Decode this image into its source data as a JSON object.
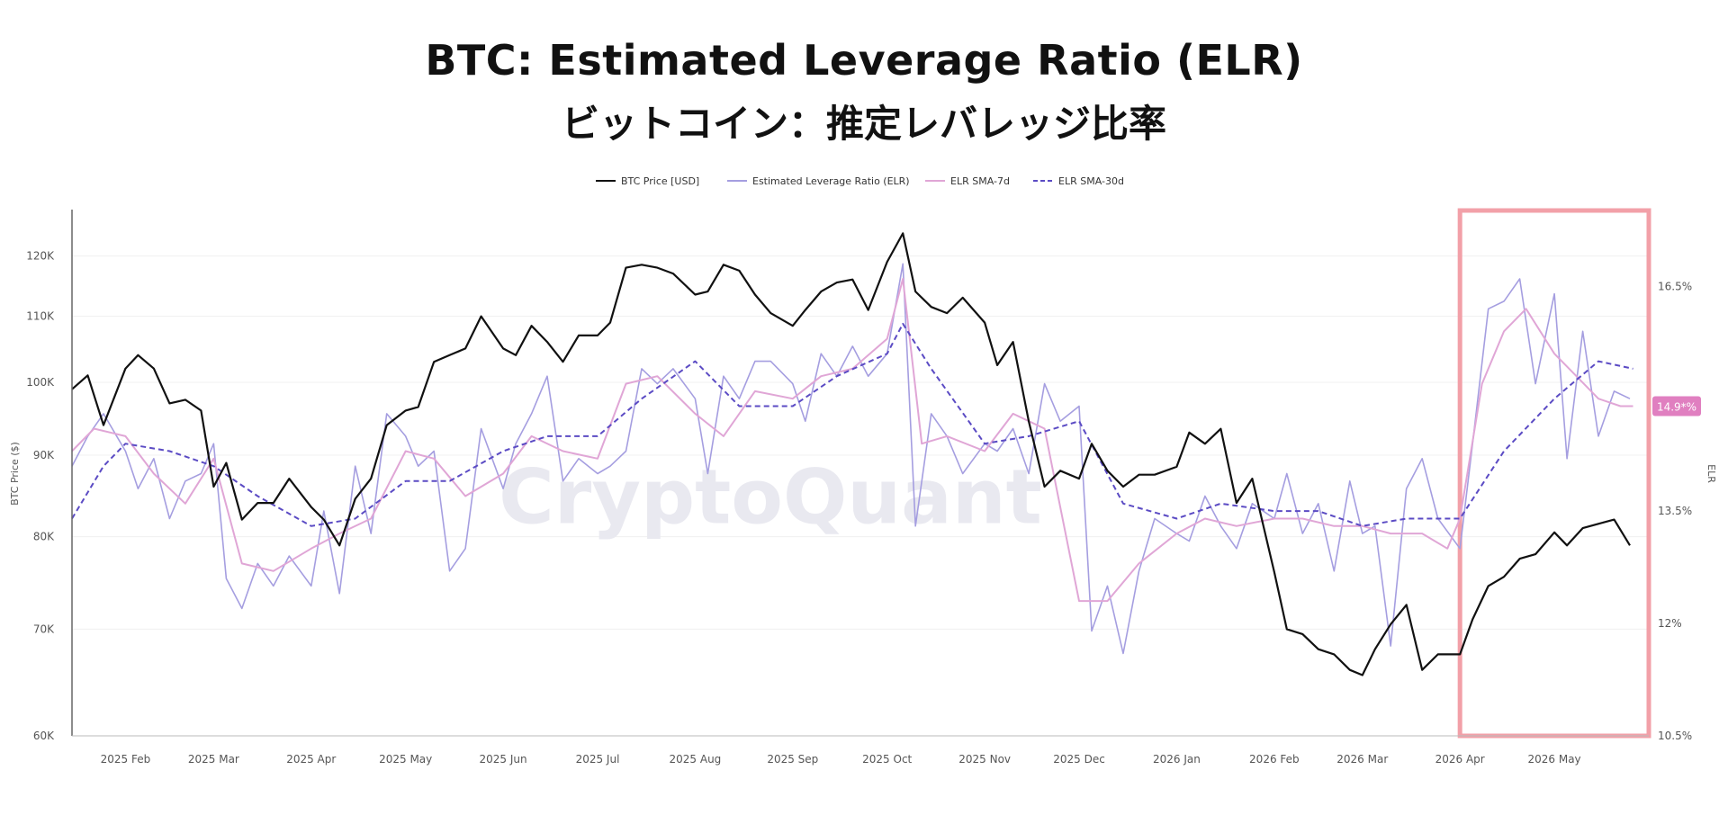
{
  "chart_data": {
    "type": "line",
    "title": "BTC: Estimated Leverage Ratio (ELR)",
    "subtitle": "ビットコイン：推定レバレッジ比率",
    "watermark": "CryptoQuant",
    "legend": {
      "placement": "top-center",
      "entries": [
        "BTC Price [USD]",
        "Estimated Leverage Ratio (ELR)",
        "ELR SMA-7d",
        "ELR SMA-30d"
      ]
    },
    "y_left": {
      "label": "BTC Price ($)",
      "scale": "log",
      "range": [
        60000,
        128000
      ],
      "ticks": [
        60000,
        70000,
        80000,
        90000,
        100000,
        110000,
        120000
      ],
      "tick_labels": [
        "60K",
        "70K",
        "80K",
        "90K",
        "100K",
        "110K",
        "120K"
      ]
    },
    "y_right": {
      "label": "ELR",
      "range": [
        10.5,
        17.5
      ],
      "ticks": [
        10.5,
        12,
        13.5,
        15,
        16.5
      ],
      "tick_labels": [
        "10.5%",
        "12%",
        "13.5%",
        "",
        "16.5%"
      ],
      "current_value_label": "14.9*%",
      "current_value": 14.9
    },
    "x_axis": {
      "range": [
        "2025-01-15",
        "2026-05-31"
      ],
      "ticks": [
        "2025-02-01",
        "2025-03-01",
        "2025-04-01",
        "2025-05-01",
        "2025-06-01",
        "2025-07-01",
        "2025-08-01",
        "2025-09-01",
        "2025-10-01",
        "2025-11-01",
        "2025-12-01",
        "2026-01-01",
        "2026-02-01",
        "2026-03-01",
        "2026-04-01",
        "2026-05-01"
      ],
      "tick_labels": [
        "2025 Feb",
        "2025 Mar",
        "2025 Apr",
        "2025 May",
        "2025 Jun",
        "2025 Jul",
        "2025 Aug",
        "2025 Sep",
        "2025 Oct",
        "2025 Nov",
        "2025 Dec",
        "2026 Jan",
        "2026 Feb",
        "2026 Mar",
        "2026 Apr",
        "2026 May"
      ]
    },
    "highlight_range": {
      "from": "2026-04-01",
      "to": "2026-05-31",
      "color": "#f2a0a8"
    },
    "series": [
      {
        "name": "BTC Price [USD]",
        "axis": "left",
        "color": "#111111",
        "dash": false,
        "x": [
          "2025-01-15",
          "2025-01-20",
          "2025-01-25",
          "2025-02-01",
          "2025-02-05",
          "2025-02-10",
          "2025-02-15",
          "2025-02-20",
          "2025-02-25",
          "2025-03-01",
          "2025-03-05",
          "2025-03-10",
          "2025-03-15",
          "2025-03-20",
          "2025-03-25",
          "2025-04-01",
          "2025-04-05",
          "2025-04-10",
          "2025-04-15",
          "2025-04-20",
          "2025-04-25",
          "2025-05-01",
          "2025-05-05",
          "2025-05-10",
          "2025-05-15",
          "2025-05-20",
          "2025-05-25",
          "2025-06-01",
          "2025-06-05",
          "2025-06-10",
          "2025-06-15",
          "2025-06-20",
          "2025-06-25",
          "2025-07-01",
          "2025-07-05",
          "2025-07-10",
          "2025-07-15",
          "2025-07-20",
          "2025-07-25",
          "2025-08-01",
          "2025-08-05",
          "2025-08-10",
          "2025-08-15",
          "2025-08-20",
          "2025-08-25",
          "2025-09-01",
          "2025-09-05",
          "2025-09-10",
          "2025-09-15",
          "2025-09-20",
          "2025-09-25",
          "2025-10-01",
          "2025-10-06",
          "2025-10-10",
          "2025-10-15",
          "2025-10-20",
          "2025-10-25",
          "2025-11-01",
          "2025-11-05",
          "2025-11-10",
          "2025-11-15",
          "2025-11-20",
          "2025-11-25",
          "2025-12-01",
          "2025-12-05",
          "2025-12-10",
          "2025-12-15",
          "2025-12-20",
          "2025-12-25",
          "2026-01-01",
          "2026-01-05",
          "2026-01-10",
          "2026-01-15",
          "2026-01-20",
          "2026-01-25",
          "2026-02-01",
          "2026-02-05",
          "2026-02-10",
          "2026-02-15",
          "2026-02-20",
          "2026-02-25",
          "2026-03-01",
          "2026-03-05",
          "2026-03-10",
          "2026-03-15",
          "2026-03-20",
          "2026-03-25",
          "2026-04-01",
          "2026-04-05",
          "2026-04-10",
          "2026-04-15",
          "2026-04-20",
          "2026-04-25",
          "2026-05-01",
          "2026-05-05",
          "2026-05-10",
          "2026-05-15",
          "2026-05-20",
          "2026-05-25"
        ],
        "values": [
          99000,
          101000,
          94000,
          102000,
          104000,
          102000,
          97000,
          97500,
          96000,
          86000,
          89000,
          82000,
          84000,
          84000,
          87000,
          83500,
          82000,
          79000,
          84500,
          87000,
          94000,
          96000,
          96500,
          103000,
          104000,
          105000,
          110000,
          105000,
          104000,
          108500,
          106000,
          103000,
          107000,
          107000,
          109000,
          118000,
          118500,
          118000,
          117000,
          113500,
          114000,
          118500,
          117500,
          113500,
          110500,
          108500,
          111000,
          114000,
          115500,
          116000,
          111000,
          119000,
          124000,
          114000,
          111500,
          110500,
          113000,
          109000,
          102500,
          106000,
          94500,
          86000,
          88000,
          87000,
          91500,
          88000,
          86000,
          87500,
          87500,
          88500,
          93000,
          91500,
          93500,
          84000,
          87000,
          76000,
          70000,
          69500,
          68000,
          67500,
          66000,
          65500,
          68000,
          70500,
          72500,
          66000,
          67500,
          67500,
          71000,
          74500,
          75500,
          77500,
          78000,
          80500,
          79000,
          81000,
          81500,
          82000,
          79000
        ],
        "note": "approximate values read from chart"
      },
      {
        "name": "Estimated Leverage Ratio (ELR)",
        "axis": "right",
        "color": "#a59ee0",
        "dash": false,
        "x": [
          "2025-01-15",
          "2025-01-20",
          "2025-01-25",
          "2025-02-01",
          "2025-02-05",
          "2025-02-10",
          "2025-02-15",
          "2025-02-20",
          "2025-02-25",
          "2025-03-01",
          "2025-03-05",
          "2025-03-10",
          "2025-03-15",
          "2025-03-20",
          "2025-03-25",
          "2025-04-01",
          "2025-04-05",
          "2025-04-10",
          "2025-04-15",
          "2025-04-20",
          "2025-04-25",
          "2025-05-01",
          "2025-05-05",
          "2025-05-10",
          "2025-05-15",
          "2025-05-20",
          "2025-05-25",
          "2025-06-01",
          "2025-06-05",
          "2025-06-10",
          "2025-06-15",
          "2025-06-20",
          "2025-06-25",
          "2025-07-01",
          "2025-07-05",
          "2025-07-10",
          "2025-07-15",
          "2025-07-20",
          "2025-07-25",
          "2025-08-01",
          "2025-08-05",
          "2025-08-10",
          "2025-08-15",
          "2025-08-20",
          "2025-08-25",
          "2025-09-01",
          "2025-09-05",
          "2025-09-10",
          "2025-09-15",
          "2025-09-20",
          "2025-09-25",
          "2025-10-01",
          "2025-10-06",
          "2025-10-10",
          "2025-10-15",
          "2025-10-20",
          "2025-10-25",
          "2025-11-01",
          "2025-11-05",
          "2025-11-10",
          "2025-11-15",
          "2025-11-20",
          "2025-11-25",
          "2025-12-01",
          "2025-12-05",
          "2025-12-10",
          "2025-12-15",
          "2025-12-20",
          "2025-12-25",
          "2026-01-01",
          "2026-01-05",
          "2026-01-10",
          "2026-01-15",
          "2026-01-20",
          "2026-01-25",
          "2026-02-01",
          "2026-02-05",
          "2026-02-10",
          "2026-02-15",
          "2026-02-20",
          "2026-02-25",
          "2026-03-01",
          "2026-03-05",
          "2026-03-10",
          "2026-03-15",
          "2026-03-20",
          "2026-03-25",
          "2026-04-01",
          "2026-04-05",
          "2026-04-10",
          "2026-04-15",
          "2026-04-20",
          "2026-04-25",
          "2026-05-01",
          "2026-05-05",
          "2026-05-10",
          "2026-05-15",
          "2026-05-20",
          "2026-05-25"
        ],
        "values": [
          14.1,
          14.5,
          14.8,
          14.3,
          13.8,
          14.2,
          13.4,
          13.9,
          14.0,
          14.4,
          12.6,
          12.2,
          12.8,
          12.5,
          12.9,
          12.5,
          13.5,
          12.4,
          14.1,
          13.2,
          14.8,
          14.5,
          14.1,
          14.3,
          12.7,
          13.0,
          14.6,
          13.8,
          14.4,
          14.8,
          15.3,
          13.9,
          14.2,
          14.0,
          14.1,
          14.3,
          15.4,
          15.2,
          15.4,
          15.0,
          14.0,
          15.3,
          15.0,
          15.5,
          15.5,
          15.2,
          14.7,
          15.6,
          15.3,
          15.7,
          15.3,
          15.6,
          16.8,
          13.3,
          14.8,
          14.5,
          14.0,
          14.4,
          14.3,
          14.6,
          14.0,
          15.2,
          14.7,
          14.9,
          11.9,
          12.5,
          11.6,
          12.7,
          13.4,
          13.2,
          13.1,
          13.7,
          13.3,
          13.0,
          13.6,
          13.4,
          14.0,
          13.2,
          13.6,
          12.7,
          13.9,
          13.2,
          13.3,
          11.7,
          13.8,
          14.2,
          13.4,
          13.0,
          14.4,
          16.2,
          16.3,
          16.6,
          15.2,
          16.4,
          14.2,
          15.9,
          14.5,
          15.1,
          15.0
        ],
        "note": "approximate values read from chart"
      },
      {
        "name": "ELR SMA-7d",
        "axis": "right",
        "color": "#e0a6d6",
        "dash": false,
        "x": [
          "2025-01-15",
          "2025-01-22",
          "2025-02-01",
          "2025-02-10",
          "2025-02-20",
          "2025-03-01",
          "2025-03-10",
          "2025-03-20",
          "2025-04-01",
          "2025-04-10",
          "2025-04-20",
          "2025-05-01",
          "2025-05-10",
          "2025-05-20",
          "2025-06-01",
          "2025-06-10",
          "2025-06-20",
          "2025-07-01",
          "2025-07-10",
          "2025-07-20",
          "2025-08-01",
          "2025-08-10",
          "2025-08-20",
          "2025-09-01",
          "2025-09-10",
          "2025-09-20",
          "2025-10-01",
          "2025-10-06",
          "2025-10-12",
          "2025-10-20",
          "2025-11-01",
          "2025-11-10",
          "2025-11-20",
          "2025-12-01",
          "2025-12-10",
          "2025-12-20",
          "2026-01-01",
          "2026-01-10",
          "2026-01-20",
          "2026-02-01",
          "2026-02-10",
          "2026-02-20",
          "2026-03-01",
          "2026-03-10",
          "2026-03-20",
          "2026-03-28",
          "2026-04-01",
          "2026-04-08",
          "2026-04-15",
          "2026-04-22",
          "2026-05-01",
          "2026-05-08",
          "2026-05-15",
          "2026-05-22",
          "2026-05-26"
        ],
        "values": [
          14.3,
          14.6,
          14.5,
          14.0,
          13.6,
          14.2,
          12.8,
          12.7,
          13.0,
          13.2,
          13.4,
          14.3,
          14.2,
          13.7,
          14.0,
          14.5,
          14.3,
          14.2,
          15.2,
          15.3,
          14.8,
          14.5,
          15.1,
          15.0,
          15.3,
          15.4,
          15.8,
          16.6,
          14.4,
          14.5,
          14.3,
          14.8,
          14.6,
          12.3,
          12.3,
          12.8,
          13.2,
          13.4,
          13.3,
          13.4,
          13.4,
          13.3,
          13.3,
          13.2,
          13.2,
          13.0,
          13.4,
          15.2,
          15.9,
          16.2,
          15.6,
          15.3,
          15.0,
          14.9,
          14.9
        ],
        "note": "approximate values read from chart"
      },
      {
        "name": "ELR SMA-30d",
        "axis": "right",
        "color": "#5b4bc4",
        "dash": true,
        "x": [
          "2025-01-15",
          "2025-01-25",
          "2025-02-01",
          "2025-02-15",
          "2025-03-01",
          "2025-03-15",
          "2025-04-01",
          "2025-04-15",
          "2025-05-01",
          "2025-05-15",
          "2025-06-01",
          "2025-06-15",
          "2025-07-01",
          "2025-07-15",
          "2025-08-01",
          "2025-08-15",
          "2025-09-01",
          "2025-09-15",
          "2025-10-01",
          "2025-10-06",
          "2025-10-15",
          "2025-11-01",
          "2025-11-15",
          "2025-12-01",
          "2025-12-15",
          "2026-01-01",
          "2026-01-15",
          "2026-02-01",
          "2026-02-15",
          "2026-03-01",
          "2026-03-15",
          "2026-04-01",
          "2026-04-15",
          "2026-05-01",
          "2026-05-15",
          "2026-05-26"
        ],
        "values": [
          13.4,
          14.1,
          14.4,
          14.3,
          14.1,
          13.7,
          13.3,
          13.4,
          13.9,
          13.9,
          14.3,
          14.5,
          14.5,
          15.0,
          15.5,
          14.9,
          14.9,
          15.3,
          15.6,
          16.0,
          15.4,
          14.4,
          14.5,
          14.7,
          13.6,
          13.4,
          13.6,
          13.5,
          13.5,
          13.3,
          13.4,
          13.4,
          14.3,
          15.0,
          15.5,
          15.4
        ],
        "note": "approximate values read from chart"
      }
    ]
  }
}
